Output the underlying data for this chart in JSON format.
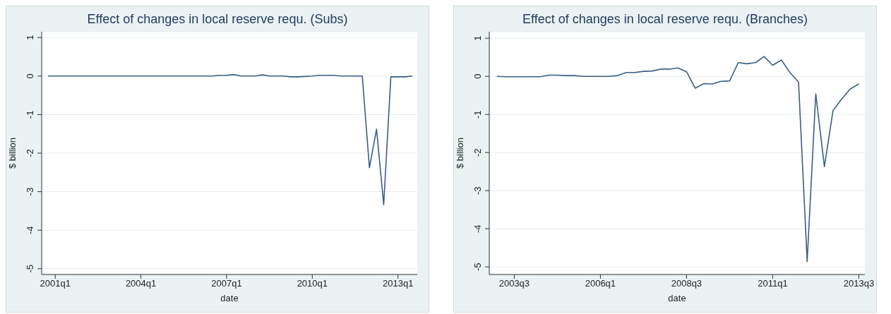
{
  "chart_data": [
    {
      "type": "line",
      "title": "Effect of changes in local reserve requ. (Subs)",
      "xlabel": "date",
      "ylabel": "$ billion",
      "grid": "y",
      "ylim": [
        -5.15,
        1.15
      ],
      "yticks": [
        -5,
        -4,
        -3,
        -2,
        -1,
        0,
        1
      ],
      "categories": [
        null,
        "2001q1",
        null,
        null,
        null,
        null,
        null,
        null,
        null,
        null,
        null,
        null,
        null,
        "2004q1",
        null,
        null,
        null,
        null,
        null,
        null,
        null,
        null,
        null,
        null,
        null,
        "2007q1",
        null,
        null,
        null,
        null,
        null,
        null,
        null,
        null,
        null,
        null,
        null,
        "2010q1",
        null,
        null,
        null,
        null,
        null,
        null,
        null,
        null,
        null,
        null,
        null,
        "2013q1",
        null,
        null
      ],
      "series": [
        {
          "color": "#3a5f86",
          "values": [
            0,
            0,
            0,
            0,
            0,
            0,
            0,
            0,
            0,
            0,
            0,
            0,
            0,
            0,
            0,
            0,
            0,
            0,
            0,
            0,
            0,
            0,
            0,
            0,
            0.02,
            0.02,
            0.04,
            0,
            0,
            0,
            0.03,
            0,
            0,
            0,
            -0.02,
            -0.02,
            -0.01,
            0,
            0.02,
            0.02,
            0.02,
            0,
            0,
            0,
            0,
            -2.38,
            -1.38,
            -3.34,
            -0.02,
            -0.02,
            -0.02,
            0
          ]
        }
      ]
    },
    {
      "type": "line",
      "title": "Effect of changes in local reserve requ. (Branches)",
      "xlabel": "date",
      "ylabel": "$ billion",
      "grid": "y",
      "ylim": [
        -5.2,
        1.17
      ],
      "yticks": [
        -5,
        -4,
        -3,
        -2,
        -1,
        0,
        1
      ],
      "categories": [
        null,
        null,
        "2003q3",
        null,
        null,
        null,
        null,
        null,
        null,
        null,
        null,
        null,
        "2006q1",
        null,
        null,
        null,
        null,
        null,
        null,
        null,
        null,
        null,
        "2008q3",
        null,
        null,
        null,
        null,
        null,
        null,
        null,
        null,
        null,
        "2011q1",
        null,
        null,
        null,
        null,
        null,
        null,
        null,
        null,
        null,
        "2013q3"
      ],
      "series": [
        {
          "color": "#3a5f86",
          "values": [
            0,
            -0.01,
            -0.01,
            -0.01,
            -0.01,
            -0.01,
            0.03,
            0.03,
            0.02,
            0.02,
            0,
            0,
            0,
            0,
            0.02,
            0.1,
            0.1,
            0.13,
            0.14,
            0.19,
            0.19,
            0.22,
            0.12,
            -0.31,
            -0.19,
            -0.2,
            -0.13,
            -0.12,
            0.36,
            0.33,
            0.36,
            0.52,
            0.29,
            0.43,
            0.1,
            -0.15,
            -4.86,
            -0.46,
            -2.37,
            -0.9,
            -0.6,
            -0.33,
            -0.2
          ]
        }
      ]
    }
  ]
}
